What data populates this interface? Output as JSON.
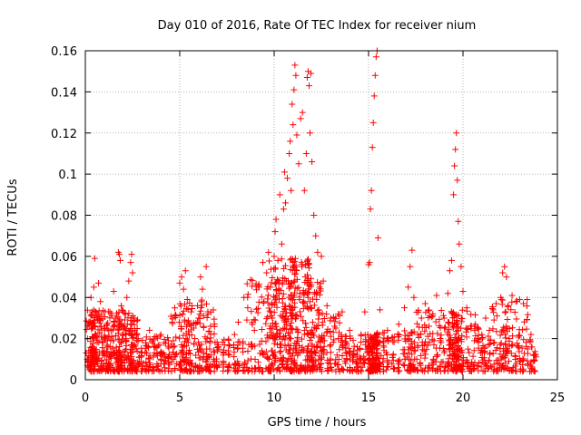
{
  "chart_data": {
    "type": "scatter",
    "title": "Day 010 of 2016, Rate Of TEC Index for receiver nium",
    "xlabel": "GPS time / hours",
    "ylabel": "ROTI / TECUs",
    "xlim": [
      0,
      25
    ],
    "ylim": [
      0,
      0.16
    ],
    "xticks": [
      0,
      5,
      10,
      15,
      20,
      25
    ],
    "xtick_labels": [
      "0",
      "5",
      "10",
      "15",
      "20",
      "25"
    ],
    "yticks": [
      0,
      0.02,
      0.04,
      0.06,
      0.08,
      0.1,
      0.12,
      0.14,
      0.16
    ],
    "ytick_labels": [
      "0",
      "0.02",
      "0.04",
      "0.06",
      "0.08",
      "0.1",
      "0.12",
      "0.14",
      "0.16"
    ],
    "grid": true,
    "marker": "+",
    "marker_color": "#ff0000",
    "series": [
      {
        "name": "ROTI",
        "points": [
          [
            0.1,
            0.01
          ],
          [
            0.2,
            0.028
          ],
          [
            0.3,
            0.04
          ],
          [
            0.35,
            0.033
          ],
          [
            0.4,
            0.015
          ],
          [
            0.45,
            0.045
          ],
          [
            0.5,
            0.059
          ],
          [
            0.55,
            0.022
          ],
          [
            0.6,
            0.012
          ],
          [
            0.7,
            0.047
          ],
          [
            0.8,
            0.038
          ],
          [
            0.9,
            0.018
          ],
          [
            1.0,
            0.025
          ],
          [
            1.1,
            0.008
          ],
          [
            1.2,
            0.016
          ],
          [
            1.3,
            0.033
          ],
          [
            1.4,
            0.021
          ],
          [
            1.5,
            0.043
          ],
          [
            1.6,
            0.03
          ],
          [
            1.7,
            0.01
          ],
          [
            1.75,
            0.062
          ],
          [
            1.8,
            0.061
          ],
          [
            1.85,
            0.058
          ],
          [
            1.9,
            0.036
          ],
          [
            2.0,
            0.012
          ],
          [
            2.1,
            0.025
          ],
          [
            2.2,
            0.04
          ],
          [
            2.3,
            0.048
          ],
          [
            2.4,
            0.057
          ],
          [
            2.45,
            0.061
          ],
          [
            2.5,
            0.052
          ],
          [
            2.6,
            0.03
          ],
          [
            2.7,
            0.015
          ],
          [
            2.8,
            0.02
          ],
          [
            3.0,
            0.013
          ],
          [
            3.2,
            0.018
          ],
          [
            3.4,
            0.024
          ],
          [
            3.6,
            0.011
          ],
          [
            3.8,
            0.016
          ],
          [
            4.0,
            0.022
          ],
          [
            4.2,
            0.012
          ],
          [
            4.4,
            0.019
          ],
          [
            4.6,
            0.028
          ],
          [
            4.8,
            0.031
          ],
          [
            5.0,
            0.047
          ],
          [
            5.1,
            0.05
          ],
          [
            5.2,
            0.044
          ],
          [
            5.3,
            0.053
          ],
          [
            5.4,
            0.039
          ],
          [
            5.5,
            0.027
          ],
          [
            5.6,
            0.033
          ],
          [
            5.8,
            0.02
          ],
          [
            6.0,
            0.03
          ],
          [
            6.1,
            0.05
          ],
          [
            6.2,
            0.044
          ],
          [
            6.4,
            0.055
          ],
          [
            6.5,
            0.032
          ],
          [
            6.6,
            0.018
          ],
          [
            6.8,
            0.01
          ],
          [
            7.0,
            0.014
          ],
          [
            7.3,
            0.012
          ],
          [
            7.6,
            0.017
          ],
          [
            7.9,
            0.022
          ],
          [
            8.1,
            0.028
          ],
          [
            8.4,
            0.04
          ],
          [
            8.6,
            0.035
          ],
          [
            8.8,
            0.016
          ],
          [
            9.0,
            0.029
          ],
          [
            9.2,
            0.045
          ],
          [
            9.4,
            0.057
          ],
          [
            9.6,
            0.052
          ],
          [
            9.7,
            0.062
          ],
          [
            9.8,
            0.045
          ],
          [
            9.9,
            0.03
          ],
          [
            10.0,
            0.06
          ],
          [
            10.05,
            0.072
          ],
          [
            10.1,
            0.078
          ],
          [
            10.2,
            0.058
          ],
          [
            10.3,
            0.09
          ],
          [
            10.4,
            0.066
          ],
          [
            10.5,
            0.083
          ],
          [
            10.55,
            0.101
          ],
          [
            10.6,
            0.086
          ],
          [
            10.7,
            0.098
          ],
          [
            10.8,
            0.11
          ],
          [
            10.85,
            0.116
          ],
          [
            10.9,
            0.092
          ],
          [
            10.95,
            0.134
          ],
          [
            11.0,
            0.124
          ],
          [
            11.05,
            0.141
          ],
          [
            11.1,
            0.153
          ],
          [
            11.15,
            0.148
          ],
          [
            11.2,
            0.119
          ],
          [
            11.3,
            0.105
          ],
          [
            11.4,
            0.127
          ],
          [
            11.5,
            0.13
          ],
          [
            11.6,
            0.092
          ],
          [
            11.7,
            0.11
          ],
          [
            11.75,
            0.147
          ],
          [
            11.8,
            0.15
          ],
          [
            11.85,
            0.143
          ],
          [
            11.9,
            0.12
          ],
          [
            11.95,
            0.149
          ],
          [
            12.0,
            0.106
          ],
          [
            12.1,
            0.08
          ],
          [
            12.2,
            0.07
          ],
          [
            12.3,
            0.062
          ],
          [
            12.4,
            0.045
          ],
          [
            12.5,
            0.06
          ],
          [
            12.6,
            0.048
          ],
          [
            12.8,
            0.036
          ],
          [
            13.0,
            0.03
          ],
          [
            13.2,
            0.026
          ],
          [
            13.4,
            0.02
          ],
          [
            13.6,
            0.033
          ],
          [
            13.8,
            0.018
          ],
          [
            14.0,
            0.024
          ],
          [
            14.2,
            0.014
          ],
          [
            14.4,
            0.016
          ],
          [
            14.6,
            0.022
          ],
          [
            14.8,
            0.033
          ],
          [
            15.0,
            0.056
          ],
          [
            15.05,
            0.057
          ],
          [
            15.1,
            0.083
          ],
          [
            15.15,
            0.092
          ],
          [
            15.2,
            0.113
          ],
          [
            15.25,
            0.125
          ],
          [
            15.3,
            0.138
          ],
          [
            15.35,
            0.148
          ],
          [
            15.4,
            0.157
          ],
          [
            15.45,
            0.16
          ],
          [
            15.5,
            0.069
          ],
          [
            15.6,
            0.034
          ],
          [
            15.8,
            0.018
          ],
          [
            16.0,
            0.024
          ],
          [
            16.3,
            0.012
          ],
          [
            16.6,
            0.027
          ],
          [
            16.9,
            0.035
          ],
          [
            17.1,
            0.045
          ],
          [
            17.2,
            0.055
          ],
          [
            17.3,
            0.063
          ],
          [
            17.4,
            0.04
          ],
          [
            17.6,
            0.022
          ],
          [
            17.8,
            0.03
          ],
          [
            18.0,
            0.037
          ],
          [
            18.2,
            0.026
          ],
          [
            18.4,
            0.031
          ],
          [
            18.6,
            0.041
          ],
          [
            18.8,
            0.019
          ],
          [
            19.0,
            0.03
          ],
          [
            19.2,
            0.042
          ],
          [
            19.3,
            0.053
          ],
          [
            19.4,
            0.058
          ],
          [
            19.5,
            0.09
          ],
          [
            19.55,
            0.104
          ],
          [
            19.6,
            0.112
          ],
          [
            19.65,
            0.12
          ],
          [
            19.7,
            0.097
          ],
          [
            19.75,
            0.077
          ],
          [
            19.8,
            0.066
          ],
          [
            19.9,
            0.055
          ],
          [
            20.0,
            0.043
          ],
          [
            20.2,
            0.035
          ],
          [
            20.4,
            0.026
          ],
          [
            20.6,
            0.019
          ],
          [
            20.8,
            0.025
          ],
          [
            21.0,
            0.022
          ],
          [
            21.2,
            0.03
          ],
          [
            21.4,
            0.024
          ],
          [
            21.6,
            0.034
          ],
          [
            21.8,
            0.031
          ],
          [
            22.0,
            0.04
          ],
          [
            22.1,
            0.052
          ],
          [
            22.2,
            0.055
          ],
          [
            22.3,
            0.05
          ],
          [
            22.4,
            0.036
          ],
          [
            22.6,
            0.041
          ],
          [
            22.8,
            0.038
          ],
          [
            23.0,
            0.039
          ],
          [
            23.2,
            0.037
          ],
          [
            23.4,
            0.039
          ],
          [
            23.6,
            0.022
          ],
          [
            23.8,
            0.012
          ]
        ]
      }
    ]
  }
}
